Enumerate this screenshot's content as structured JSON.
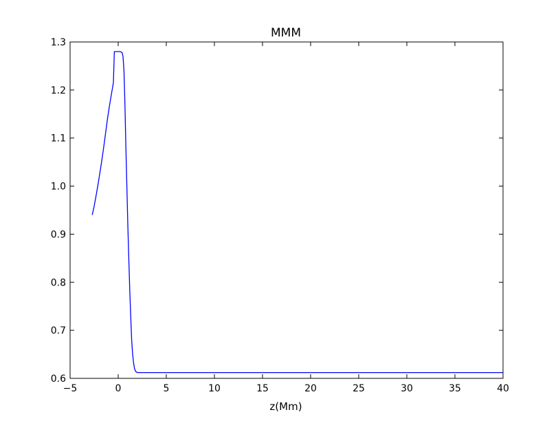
{
  "chart_data": {
    "type": "line",
    "title": "MMM",
    "xlabel": "z(Mm)",
    "ylabel": "",
    "xlim": [
      -5,
      40
    ],
    "ylim": [
      0.6,
      1.3
    ],
    "xticks": [
      -5,
      0,
      5,
      10,
      15,
      20,
      25,
      30,
      35,
      40
    ],
    "yticks": [
      0.6,
      0.7,
      0.8,
      0.9,
      1.0,
      1.1,
      1.2,
      1.3
    ],
    "xtick_labels": [
      "−5",
      "0",
      "5",
      "10",
      "15",
      "20",
      "25",
      "30",
      "35",
      "40"
    ],
    "ytick_labels": [
      "0.6",
      "0.7",
      "0.8",
      "0.9",
      "1.0",
      "1.1",
      "1.2",
      "1.3"
    ],
    "grid": false,
    "line_color": "#0000ff",
    "series": [
      {
        "x": [
          -2.7,
          -2.5,
          -2.3,
          -2.1,
          -1.9,
          -1.7,
          -1.5,
          -1.3,
          -1.1,
          -0.9,
          -0.7,
          -0.5,
          -0.4,
          -0.3,
          -0.2,
          0.0,
          0.2,
          0.4,
          0.5,
          0.6,
          0.7,
          0.8,
          0.9,
          1.0,
          1.1,
          1.2,
          1.3,
          1.4,
          1.5,
          1.6,
          1.7,
          1.8,
          1.9,
          2.0,
          2.1,
          2.3,
          2.6,
          3.0,
          5,
          10,
          15,
          20,
          25,
          30,
          35,
          40
        ],
        "y": [
          0.94,
          0.958,
          0.98,
          1.003,
          1.028,
          1.054,
          1.082,
          1.112,
          1.142,
          1.168,
          1.192,
          1.215,
          1.28,
          1.28,
          1.28,
          1.28,
          1.28,
          1.278,
          1.27,
          1.24,
          1.17,
          1.08,
          1.0,
          0.92,
          0.85,
          0.785,
          0.73,
          0.68,
          0.65,
          0.632,
          0.62,
          0.615,
          0.613,
          0.612,
          0.612,
          0.612,
          0.612,
          0.612,
          0.612,
          0.612,
          0.612,
          0.612,
          0.612,
          0.612,
          0.612,
          0.612
        ]
      }
    ]
  }
}
